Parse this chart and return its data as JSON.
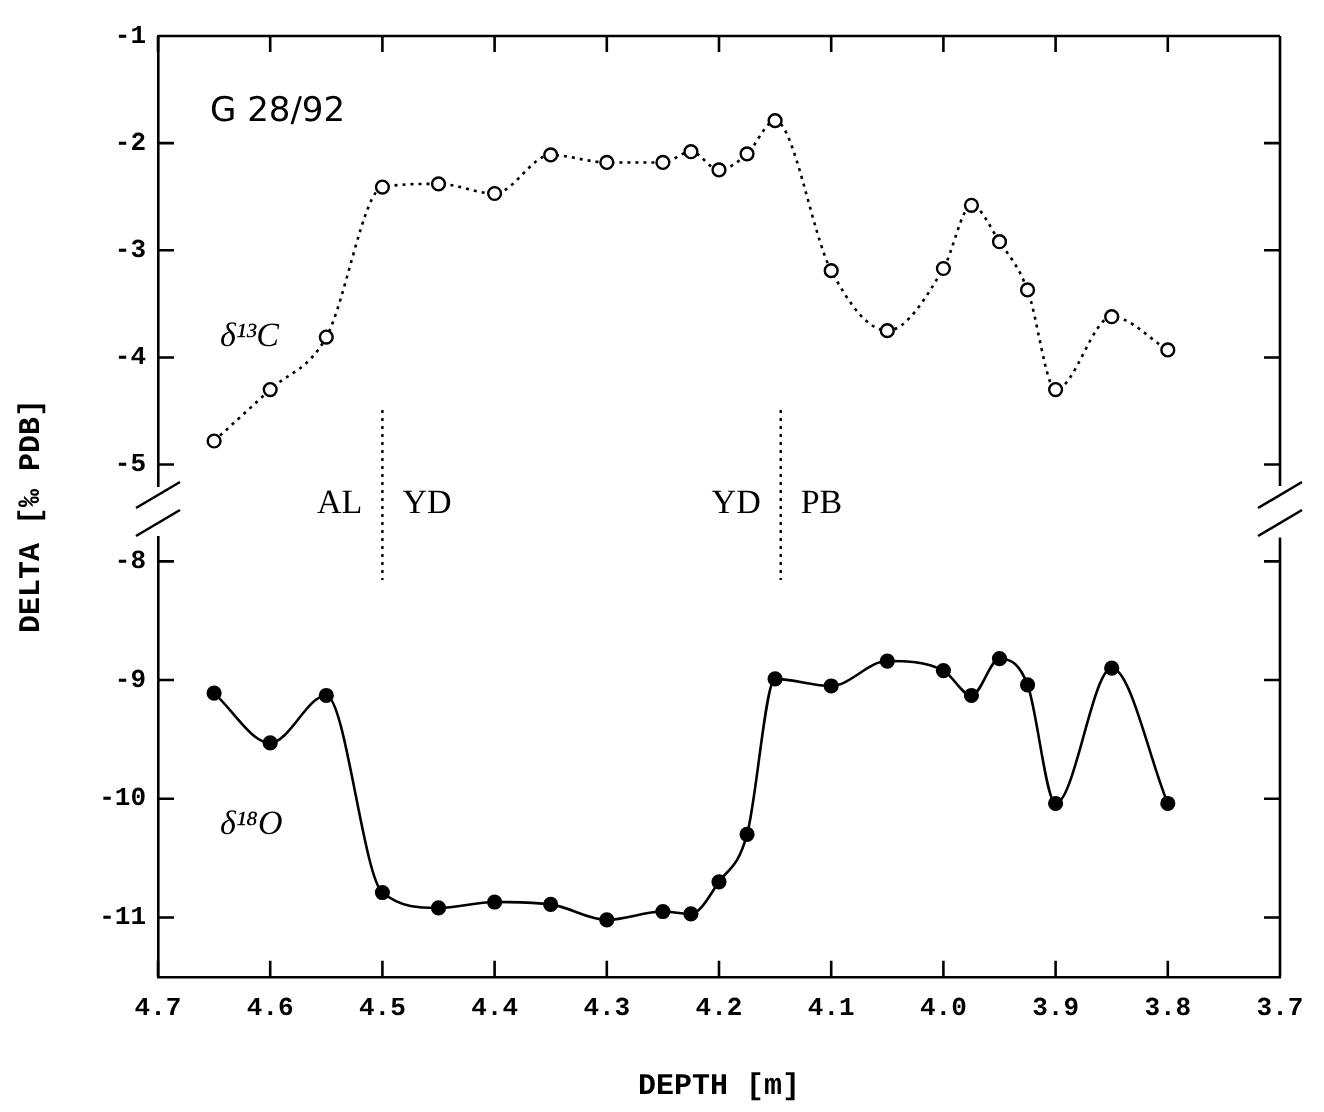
{
  "chart_data": [
    {
      "type": "line",
      "ylabel": "DELTA [‰ PDB]",
      "x": [
        4.65,
        4.6,
        4.55,
        4.5,
        4.45,
        4.4,
        4.35,
        4.3,
        4.25,
        4.225,
        4.2,
        4.175,
        4.15,
        4.1,
        4.05,
        4.0,
        3.975,
        3.95,
        3.925,
        3.9,
        3.85,
        3.8
      ],
      "series": [
        {
          "name": "δ¹³C",
          "color": "#000000",
          "marker": "circle",
          "line_style": "dotted",
          "values": [
            -4.78,
            -4.3,
            -3.81,
            -2.41,
            -2.38,
            -2.47,
            -2.11,
            -2.18,
            -2.18,
            -2.08,
            -2.25,
            -2.1,
            -1.79,
            -3.19,
            -3.75,
            -3.17,
            -2.58,
            -2.92,
            -3.37,
            -4.3,
            -3.62,
            -3.93
          ]
        }
      ],
      "xlim": [
        4.7,
        3.7
      ],
      "xticks": [
        {
          "value": 4.7,
          "label": null
        },
        {
          "value": 4.6,
          "label": null
        },
        {
          "value": 4.5,
          "label": null
        },
        {
          "value": 4.4,
          "label": null
        },
        {
          "value": 4.3,
          "label": null
        },
        {
          "value": 4.2,
          "label": null
        },
        {
          "value": 4.1,
          "label": null
        },
        {
          "value": 4,
          "label": null
        },
        {
          "value": 3.9,
          "label": null
        },
        {
          "value": 3.8,
          "label": null
        },
        {
          "value": 3.7,
          "label": null
        }
      ],
      "ylim": [
        -5.2,
        -1
      ],
      "yticks": [
        -5,
        -4,
        -3,
        -2,
        -1
      ],
      "tick_labels": "y",
      "ref_lines": [
        {
          "axis": "x",
          "value": 4.5,
          "line_style": "dotted"
        },
        {
          "axis": "x",
          "value": 4.145,
          "line_style": "dotted"
        }
      ],
      "annotations": [
        "G 28/92",
        "AL",
        "YD",
        "YD",
        "PB"
      ],
      "grid": false,
      "legend": false
    },
    {
      "type": "line",
      "xlabel": "DEPTH [m]",
      "x": [
        4.65,
        4.6,
        4.55,
        4.5,
        4.45,
        4.4,
        4.35,
        4.3,
        4.25,
        4.225,
        4.2,
        4.175,
        4.15,
        4.1,
        4.05,
        4.0,
        3.975,
        3.95,
        3.925,
        3.9,
        3.85,
        3.8
      ],
      "series": [
        {
          "name": "δ¹⁸O",
          "color": "#000000",
          "marker": "circle",
          "line_style": "solid",
          "values": [
            -9.11,
            -9.53,
            -9.13,
            -10.79,
            -10.92,
            -10.87,
            -10.89,
            -11.02,
            -10.95,
            -10.97,
            -10.7,
            -10.3,
            -8.99,
            -9.05,
            -8.84,
            -8.92,
            -9.13,
            -8.82,
            -9.04,
            -10.04,
            -8.9,
            -10.04
          ]
        }
      ],
      "xlim": [
        4.7,
        3.7
      ],
      "xticks": [
        4.7,
        4.6,
        4.5,
        4.4,
        4.3,
        4.2,
        4.1,
        {
          "value": 4,
          "label": "4.0"
        },
        3.9,
        3.8,
        3.7
      ],
      "ylim": [
        -11.5,
        -7.8
      ],
      "yticks": [
        -11,
        -10,
        -9,
        -8
      ],
      "grid": false,
      "legend": false
    }
  ]
}
